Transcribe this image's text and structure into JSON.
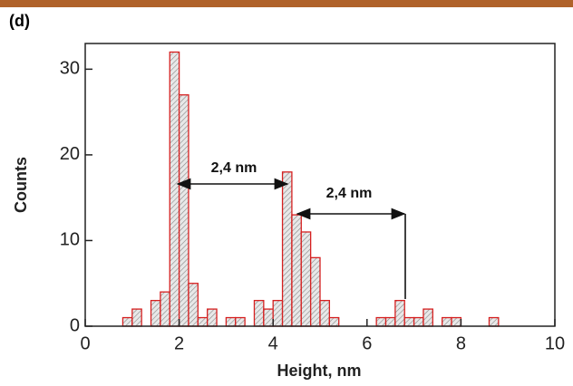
{
  "chart_data": {
    "type": "histogram",
    "panel_label": "(d)",
    "x_label": "Height, nm",
    "y_label": "Counts",
    "bins": [
      0.8,
      1.0,
      1.2,
      1.4,
      1.6,
      1.8,
      2.0,
      2.2,
      2.4,
      2.6,
      2.8,
      3.0,
      3.2,
      3.4,
      3.6,
      3.8,
      4.0,
      4.2,
      4.4,
      4.6,
      4.8,
      5.0,
      5.2,
      5.4,
      5.6,
      5.8,
      6.0,
      6.2,
      6.4,
      6.6,
      6.8,
      7.0,
      7.2,
      7.4,
      7.6,
      7.8,
      8.0,
      8.2,
      8.4,
      8.6,
      8.8
    ],
    "values": [
      1,
      2,
      0,
      3,
      4,
      32,
      27,
      5,
      1,
      2,
      0,
      1,
      1,
      0,
      3,
      2,
      3,
      18,
      13,
      11,
      8,
      3,
      1,
      0,
      0,
      0,
      0,
      1,
      1,
      3,
      1,
      1,
      2,
      0,
      1,
      1,
      0,
      0,
      0,
      1
    ],
    "color": "#d62020",
    "xlim": [
      0,
      10
    ],
    "xticks": [
      0,
      2,
      4,
      6,
      8,
      10
    ],
    "ylim": [
      0,
      33
    ],
    "yticks": [
      0,
      10,
      20,
      30
    ],
    "annotations": [
      "2,4 nm",
      "2,4 nm"
    ]
  }
}
